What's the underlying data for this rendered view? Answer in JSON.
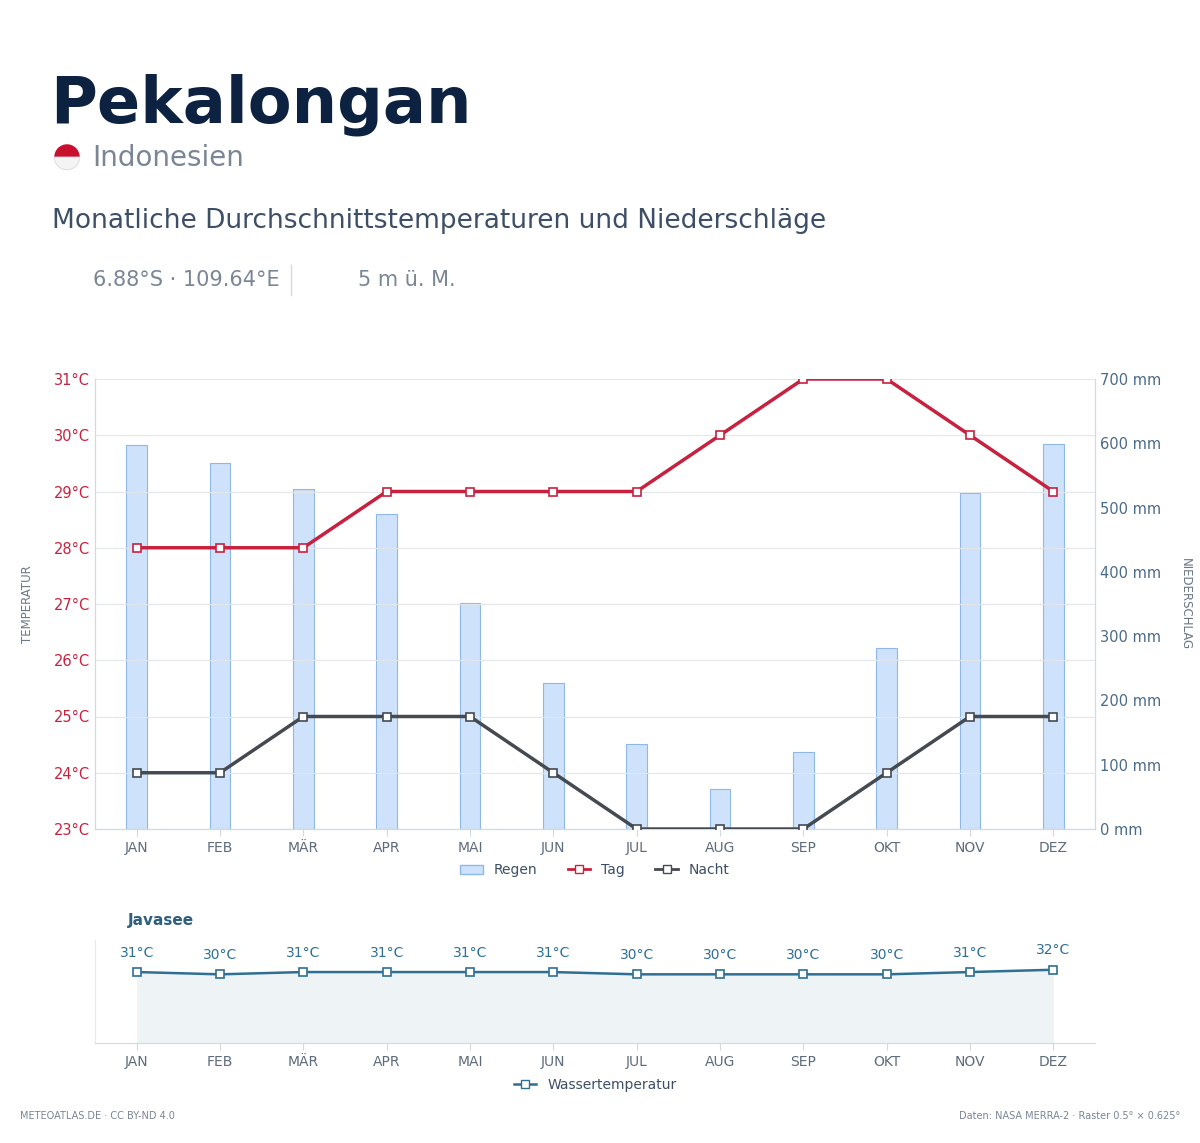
{
  "header": {
    "title": "Pekalongan",
    "country": "Indonesien",
    "subtitle": "Monatliche Durchschnittstemperaturen und Niederschläge",
    "coordinates": "6.88°S · 109.64°E",
    "elevation": "5 m ü. M."
  },
  "footer": {
    "source": "METEOATLAS.DE · CC BY-ND 4.0",
    "data_note": "Daten: NASA MERRA-2 · Raster 0.5° × 0.625°"
  },
  "chart_data": [
    {
      "type": "combo",
      "categories": [
        "JAN",
        "FEB",
        "MÄR",
        "APR",
        "MAI",
        "JUN",
        "JUL",
        "AUG",
        "SEP",
        "OKT",
        "NOV",
        "DEZ"
      ],
      "y_label": "TEMPERATUR",
      "y2_label": "NIEDERSCHLAG",
      "ylim": [
        23,
        31
      ],
      "yticks": [
        {
          "value": 23,
          "label": "23°C"
        },
        {
          "value": 24,
          "label": "24°C"
        },
        {
          "value": 25,
          "label": "25°C"
        },
        {
          "value": 26,
          "label": "26°C"
        },
        {
          "value": 27,
          "label": "27°C"
        },
        {
          "value": 28,
          "label": "28°C"
        },
        {
          "value": 29,
          "label": "29°C"
        },
        {
          "value": 30,
          "label": "30°C"
        },
        {
          "value": 31,
          "label": "31°C"
        }
      ],
      "y2lim": [
        0,
        700
      ],
      "y2ticks": [
        {
          "value": 0,
          "label": "0 mm"
        },
        {
          "value": 100,
          "label": "100 mm"
        },
        {
          "value": 200,
          "label": "200 mm"
        },
        {
          "value": 300,
          "label": "300 mm"
        },
        {
          "value": 400,
          "label": "400 mm"
        },
        {
          "value": 500,
          "label": "500 mm"
        },
        {
          "value": 600,
          "label": "600 mm"
        },
        {
          "value": 700,
          "label": "700 mm"
        }
      ],
      "grid": true,
      "legend": "lower center",
      "series": [
        {
          "name": "Regen",
          "type": "bar",
          "axis": "y2",
          "color": "#cfe2fb",
          "values": [
            597,
            569,
            529,
            490,
            351,
            227,
            132,
            62,
            120,
            281,
            523,
            599
          ]
        },
        {
          "name": "Tag",
          "type": "line",
          "color": "#c8213f",
          "marker": "square",
          "values": [
            28,
            28,
            28,
            29,
            29,
            29,
            29,
            30,
            31,
            31,
            30,
            29
          ]
        },
        {
          "name": "Nacht",
          "type": "line",
          "color": "#454a50",
          "marker": "square",
          "values": [
            24,
            24,
            25,
            25,
            25,
            24,
            23,
            23,
            23,
            24,
            25,
            25
          ]
        }
      ]
    },
    {
      "type": "line",
      "title": "Javasee",
      "categories": [
        "JAN",
        "FEB",
        "MÄR",
        "APR",
        "MAI",
        "JUN",
        "JUL",
        "AUG",
        "SEP",
        "OKT",
        "NOV",
        "DEZ"
      ],
      "ylim": [
        0,
        45
      ],
      "yticks": [],
      "tick_labels": "x",
      "data_labels": true,
      "legend": "lower center",
      "series": [
        {
          "name": "Wassertemperatur",
          "color": "#2f6f94",
          "marker": "square",
          "values": [
            31,
            30,
            31,
            31,
            31,
            31,
            30,
            30,
            30,
            30,
            31,
            32
          ],
          "value_labels": [
            "31°C",
            "30°C",
            "31°C",
            "31°C",
            "31°C",
            "31°C",
            "30°C",
            "30°C",
            "30°C",
            "30°C",
            "31°C",
            "32°C"
          ]
        }
      ]
    }
  ]
}
